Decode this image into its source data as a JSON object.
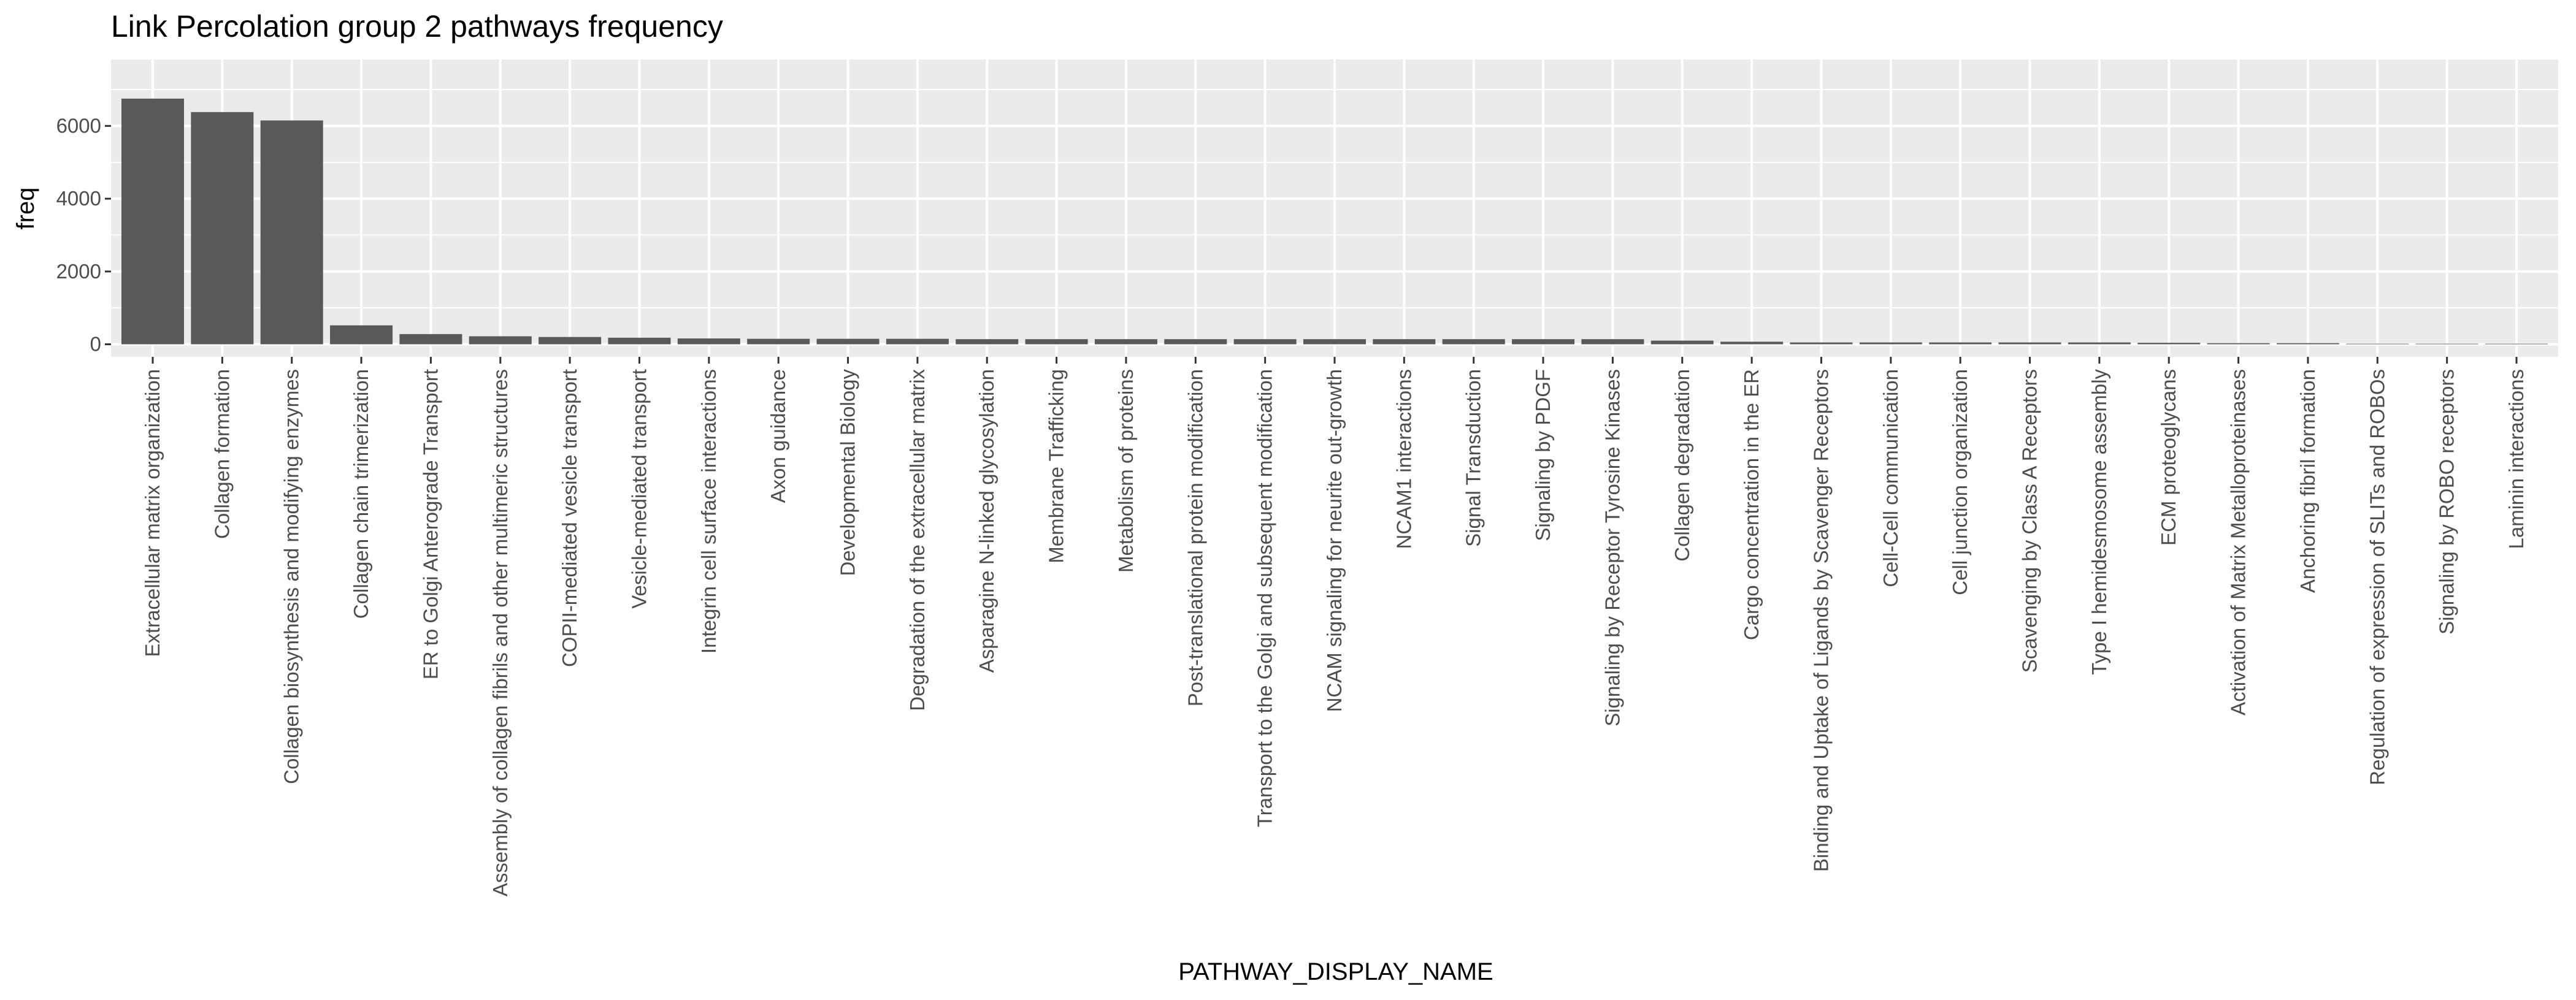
{
  "chart_data": {
    "type": "bar",
    "title": "Link Percolation group 2 pathways frequency",
    "xlabel": "PATHWAY_DISPLAY_NAME",
    "ylabel": "freq",
    "ylim": [
      0,
      7200
    ],
    "yticks": [
      0,
      2000,
      4000,
      6000
    ],
    "grid": true,
    "bar_color": "#595959",
    "panel_color": "#ebebeb",
    "grid_color": "#ffffff",
    "categories": [
      "Extracellular matrix organization",
      "Collagen formation",
      "Collagen biosynthesis and modifying enzymes",
      "Collagen chain trimerization",
      "ER to Golgi Anterograde Transport",
      "Assembly of collagen fibrils and other multimeric structures",
      "COPII-mediated vesicle transport",
      "Vesicle-mediated transport",
      "Integrin cell surface interactions",
      "Axon guidance",
      "Developmental Biology",
      "Degradation of the extracellular matrix",
      "Asparagine N-linked glycosylation",
      "Membrane Trafficking",
      "Metabolism of proteins",
      "Post-translational protein modification",
      "Transport to the Golgi and subsequent modification",
      "NCAM signaling for neurite out-growth",
      "NCAM1 interactions",
      "Signal Transduction",
      "Signaling by PDGF",
      "Signaling by Receptor Tyrosine Kinases",
      "Collagen degradation",
      "Cargo concentration in the ER",
      "Binding and Uptake of Ligands by Scavenger Receptors",
      "Cell-Cell communication",
      "Cell junction organization",
      "Scavenging by Class A Receptors",
      "Type I hemidesmosome assembly",
      "ECM proteoglycans",
      "Activation of Matrix Metalloproteinases",
      "Anchoring fibril formation",
      "Regulation of expression of SLITs and ROBOs",
      "Signaling by ROBO receptors",
      "Laminin interactions"
    ],
    "values": [
      6750,
      6380,
      6150,
      520,
      280,
      220,
      200,
      180,
      160,
      150,
      150,
      150,
      140,
      140,
      140,
      140,
      140,
      140,
      140,
      140,
      140,
      140,
      100,
      70,
      50,
      50,
      50,
      50,
      50,
      40,
      30,
      30,
      15,
      15,
      15
    ]
  }
}
